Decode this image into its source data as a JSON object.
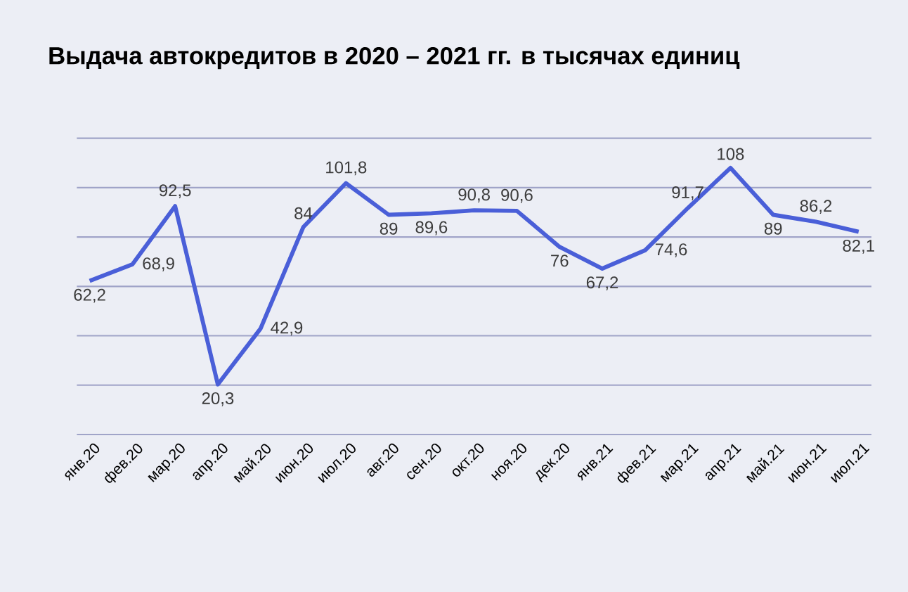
{
  "chart_data": {
    "type": "line",
    "title": "Выдача автокредитов в 2020 – 2021 гг. в тысячах единиц",
    "categories": [
      "янв.20",
      "фев.20",
      "мар.20",
      "апр.20",
      "май.20",
      "июн.20",
      "июл.20",
      "авг.20",
      "сен.20",
      "окт.20",
      "ноя.20",
      "дек.20",
      "янв.21",
      "фев.21",
      "мар.21",
      "апр.21",
      "май.21",
      "июн.21",
      "июл.21"
    ],
    "values": [
      62.2,
      68.9,
      92.5,
      20.3,
      42.9,
      84,
      101.8,
      89,
      89.6,
      90.8,
      90.6,
      76,
      67.2,
      74.6,
      91.7,
      108,
      89,
      86.2,
      82.1
    ],
    "value_labels": [
      "62,2",
      "68,9",
      "92,5",
      "20,3",
      "42,9",
      "84",
      "101,8",
      "89",
      "89,6",
      "90,8",
      "90,6",
      "76",
      "67,2",
      "74,6",
      "91,7",
      "108",
      "89",
      "86,2",
      "82,1"
    ],
    "color": "#4a5fd8",
    "ylim": [
      0,
      120
    ],
    "yticks": [
      {
        "value": 0,
        "label": null
      },
      {
        "value": 20,
        "label": null
      },
      {
        "value": 40,
        "label": null
      },
      {
        "value": 60,
        "label": null
      },
      {
        "value": 80,
        "label": null
      },
      {
        "value": 100,
        "label": null
      },
      {
        "value": 120,
        "label": null
      }
    ],
    "grid": "y",
    "tick_labels": "x"
  }
}
